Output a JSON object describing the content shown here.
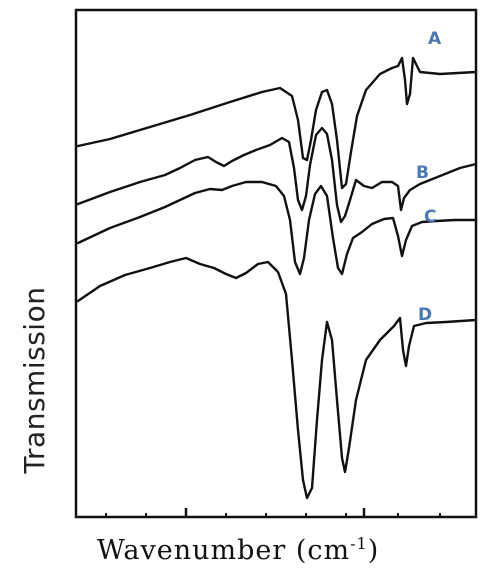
{
  "chart_data": {
    "type": "line",
    "title": "",
    "xlabel": "Wavenumber (cm",
    "xlabel_superscript": "-1",
    "xlabel_close": ")",
    "ylabel": "Transmission",
    "x_ticks_labeled": false,
    "y_ticks_labeled": false,
    "grid": false,
    "series_label_color": "#4a78b4",
    "line_color": "#111111",
    "series": [
      {
        "name": "A"
      },
      {
        "name": "B"
      },
      {
        "name": "C"
      },
      {
        "name": "D"
      }
    ]
  }
}
